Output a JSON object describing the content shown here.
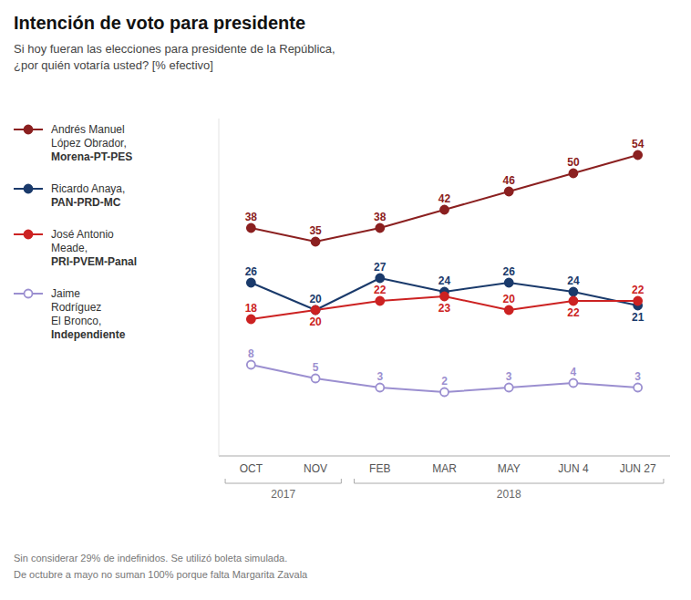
{
  "chart_data": {
    "type": "line",
    "title": "Intención de voto para presidente",
    "subtitle": "Si hoy fueran las elecciones para presidente de la República,\n¿por quién votaría usted? [% efectivo]",
    "footnotes": [
      "Sin considerar 29% de indefinidos. Se utilizó boleta simulada.",
      "De octubre a mayo no suman 100% porque falta Margarita Zavala"
    ],
    "categories": [
      "OCT",
      "NOV",
      "FEB",
      "MAR",
      "MAY",
      "JUN 4",
      "JUN 27"
    ],
    "annotations": [
      {
        "text": "2017",
        "categories": [
          "OCT",
          "NOV"
        ]
      },
      {
        "text": "2018",
        "categories": [
          "FEB",
          "JUN 27"
        ]
      }
    ],
    "series": [
      {
        "name": "Andrés Manuel\nLópez Obrador,\nMorena-PT-PES",
        "color": "#8B2020",
        "marker": "circle",
        "values": [
          38,
          35,
          38,
          42,
          46,
          50,
          54
        ]
      },
      {
        "name": "Ricardo Anaya,\nPAN-PRD-MC",
        "color": "#1A3A6B",
        "marker": "circle",
        "values": [
          26,
          20,
          27,
          24,
          26,
          24,
          21
        ]
      },
      {
        "name": "José Antonio\nMeade,\nPRI-PVEM-Panal",
        "color": "#CC2222",
        "marker": "circle",
        "values": [
          18,
          20,
          22,
          23,
          20,
          22,
          22
        ]
      },
      {
        "name": "Jaime\nRodríguez\nEl Bronco,\nIndependiente",
        "color": "#9B8FD0",
        "marker": "circle-open",
        "values": [
          8,
          5,
          3,
          2,
          3,
          4,
          3
        ]
      }
    ],
    "ylim": [
      -12,
      62
    ],
    "tick_labels": "x",
    "data_labels": true,
    "grid": false,
    "legend": "left"
  }
}
